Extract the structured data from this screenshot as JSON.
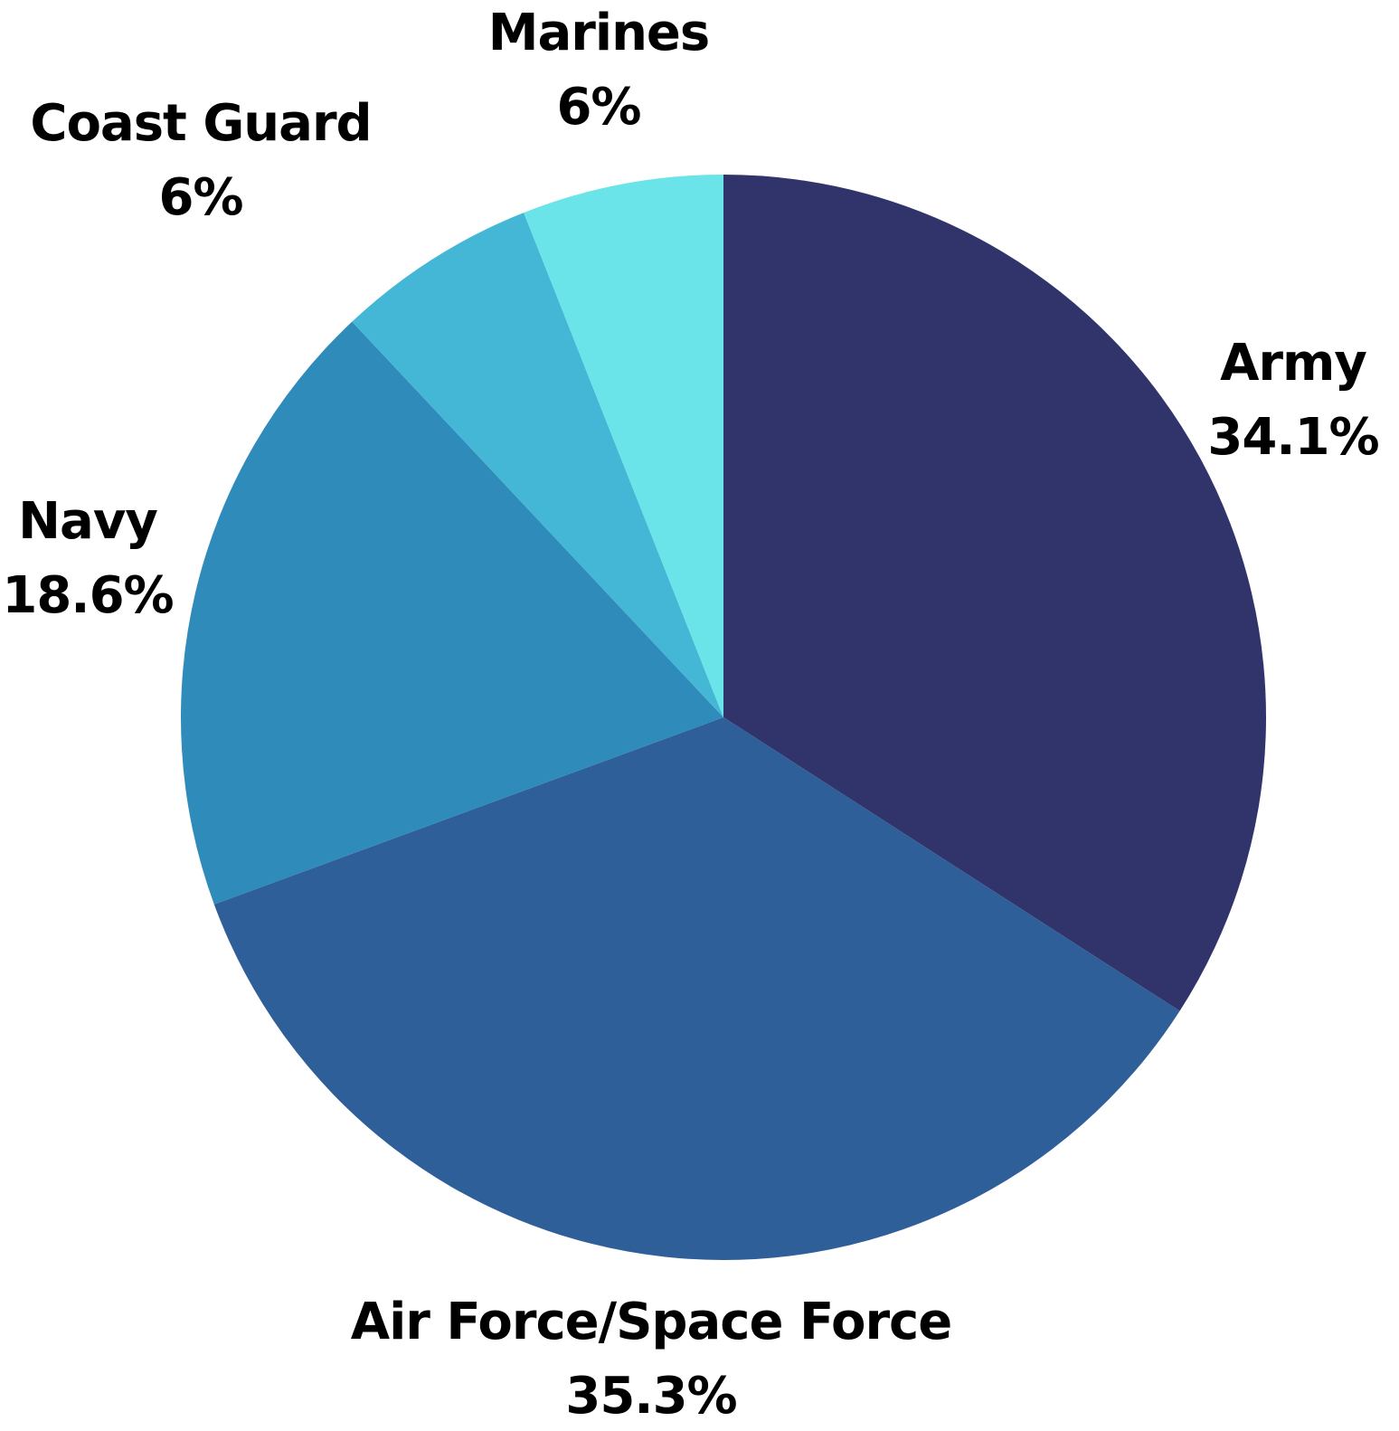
{
  "chart_data": {
    "type": "pie",
    "categories": [
      "Army",
      "Air Force/Space Force",
      "Navy",
      "Coast Guard",
      "Marines"
    ],
    "values": [
      34.1,
      35.3,
      18.6,
      6,
      6
    ],
    "value_labels": [
      "34.1%",
      "35.3%",
      "18.6%",
      "6%",
      "6%"
    ],
    "colors": [
      "#30346b",
      "#2f5f98",
      "#2e8bba",
      "#43b7d5",
      "#6ae4e8"
    ]
  }
}
